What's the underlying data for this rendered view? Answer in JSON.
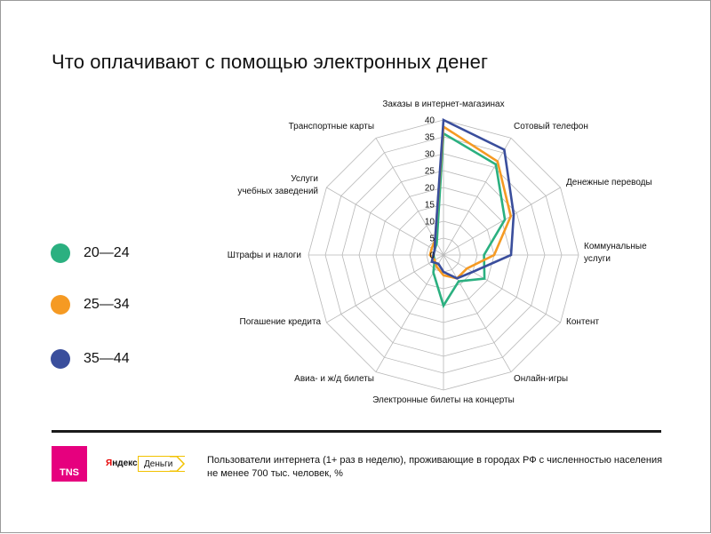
{
  "title": "Что оплачивают с помощью электронных денег",
  "legend": [
    {
      "label": "20—24",
      "color": "#2bb080"
    },
    {
      "label": "25—34",
      "color": "#f59a23"
    },
    {
      "label": "35—44",
      "color": "#3a4e9c"
    }
  ],
  "chart_data": {
    "type": "radar",
    "title": "Что оплачивают с помощью электронных денег",
    "axes": [
      "Заказы в интернет-магазинах",
      "Сотовый телефон",
      "Денежные переводы",
      "Коммунальные услуги",
      "Контент",
      "Онлайн-игры",
      "Электронные билеты на концерты",
      "Авиа- и ж/д билеты",
      "Погашение кредита",
      "Штрафы и налоги",
      "Услуги учебных заведений",
      "Транспортные карты"
    ],
    "axis_labels": [
      [
        "Заказы в интернет-магазинах"
      ],
      [
        "Сотовый телефон"
      ],
      [
        "Денежные переводы"
      ],
      [
        "Коммунальные",
        "услуги"
      ],
      [
        "Контент"
      ],
      [
        "Онлайн-игры"
      ],
      [
        "Электронные билеты на концерты"
      ],
      [
        "Авиа- и ж/д билеты"
      ],
      [
        "Погашение кредита"
      ],
      [
        "Штрафы и налоги"
      ],
      [
        "Услуги",
        "учебных заведений"
      ],
      [
        "Транспортные карты"
      ]
    ],
    "rlim": [
      0,
      40
    ],
    "ticks": [
      0,
      5,
      10,
      15,
      20,
      25,
      30,
      35,
      40
    ],
    "series": [
      {
        "name": "20—24",
        "color": "#2bb080",
        "values": [
          36,
          31,
          21,
          12,
          14,
          9,
          15,
          6,
          3,
          3,
          3,
          4
        ]
      },
      {
        "name": "25—34",
        "color": "#f59a23",
        "values": [
          38,
          32,
          23,
          15,
          8,
          8,
          6,
          4,
          3,
          4,
          4,
          5
        ]
      },
      {
        "name": "35—44",
        "color": "#3a4e9c",
        "values": [
          40,
          36,
          24,
          20,
          10,
          8,
          5,
          3,
          4,
          3,
          3,
          5
        ]
      }
    ]
  },
  "branding": {
    "tns": "TNS",
    "yandex_first": "Я",
    "yandex_rest": "ндекс",
    "dengi": "Деньги"
  },
  "footnote": "Пользователи интернета (1+ раз в неделю), проживающие в городах РФ с численностью населения не менее 700 тыс. человек, %"
}
